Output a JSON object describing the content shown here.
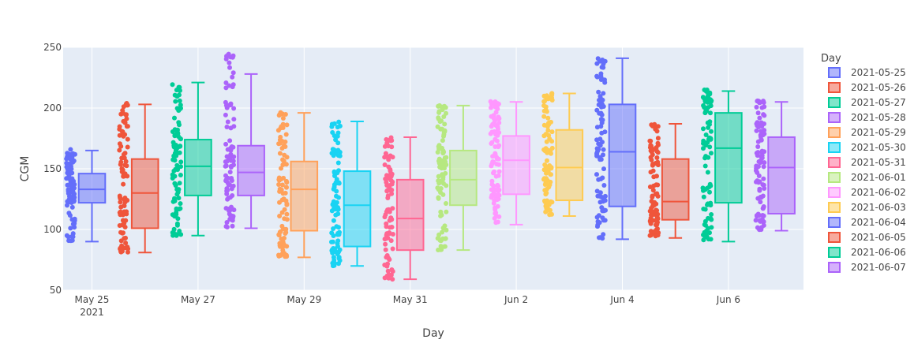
{
  "chart_data": {
    "type": "box",
    "title": "",
    "xlabel": "Day",
    "ylabel": "CGM",
    "ylim": [
      50,
      250
    ],
    "y_ticks": [
      50,
      100,
      150,
      200,
      250
    ],
    "x_ticks": [
      {
        "date": "2021-05-25",
        "label": "May 25",
        "sublabel": "2021"
      },
      {
        "date": "2021-05-27",
        "label": "May 27",
        "sublabel": ""
      },
      {
        "date": "2021-05-29",
        "label": "May 29",
        "sublabel": ""
      },
      {
        "date": "2021-05-31",
        "label": "May 31",
        "sublabel": ""
      },
      {
        "date": "2021-06-02",
        "label": "Jun 2",
        "sublabel": ""
      },
      {
        "date": "2021-06-04",
        "label": "Jun 4",
        "sublabel": ""
      },
      {
        "date": "2021-06-06",
        "label": "Jun 6",
        "sublabel": ""
      }
    ],
    "grid": true,
    "legend": {
      "title": "Day",
      "position": "right"
    },
    "series": [
      {
        "name": "2021-05-25",
        "color": "#636efa",
        "min": 90,
        "q1": 122,
        "median": 133,
        "q3": 146,
        "max": 165,
        "points_min": 90,
        "points_max": 166
      },
      {
        "name": "2021-05-26",
        "color": "#ef553b",
        "min": 81,
        "q1": 101,
        "median": 130,
        "q3": 158,
        "max": 203,
        "points_min": 81,
        "points_max": 204
      },
      {
        "name": "2021-05-27",
        "color": "#00cc96",
        "min": 95,
        "q1": 128,
        "median": 152,
        "q3": 174,
        "max": 221,
        "points_min": 95,
        "points_max": 222
      },
      {
        "name": "2021-05-28",
        "color": "#ab63fa",
        "min": 101,
        "q1": 128,
        "median": 147,
        "q3": 169,
        "max": 228,
        "points_min": 101,
        "points_max": 245
      },
      {
        "name": "2021-05-29",
        "color": "#ffa15a",
        "min": 77,
        "q1": 99,
        "median": 133,
        "q3": 156,
        "max": 196,
        "points_min": 77,
        "points_max": 197
      },
      {
        "name": "2021-05-30",
        "color": "#19d3f3",
        "min": 70,
        "q1": 86,
        "median": 120,
        "q3": 148,
        "max": 189,
        "points_min": 70,
        "points_max": 189
      },
      {
        "name": "2021-05-31",
        "color": "#ff6692",
        "min": 59,
        "q1": 83,
        "median": 109,
        "q3": 141,
        "max": 176,
        "points_min": 59,
        "points_max": 176
      },
      {
        "name": "2021-06-01",
        "color": "#b6e880",
        "min": 83,
        "q1": 120,
        "median": 141,
        "q3": 165,
        "max": 202,
        "points_min": 83,
        "points_max": 202
      },
      {
        "name": "2021-06-02",
        "color": "#ff97ff",
        "min": 104,
        "q1": 129,
        "median": 157,
        "q3": 177,
        "max": 205,
        "points_min": 104,
        "points_max": 206
      },
      {
        "name": "2021-06-03",
        "color": "#fecb52",
        "min": 111,
        "q1": 124,
        "median": 151,
        "q3": 182,
        "max": 212,
        "points_min": 111,
        "points_max": 213
      },
      {
        "name": "2021-06-04",
        "color": "#636efa",
        "min": 92,
        "q1": 119,
        "median": 164,
        "q3": 203,
        "max": 241,
        "points_min": 92,
        "points_max": 242
      },
      {
        "name": "2021-06-05",
        "color": "#ef553b",
        "min": 93,
        "q1": 108,
        "median": 123,
        "q3": 158,
        "max": 187,
        "points_min": 93,
        "points_max": 187
      },
      {
        "name": "2021-06-06",
        "color": "#00cc96",
        "min": 90,
        "q1": 122,
        "median": 167,
        "q3": 196,
        "max": 214,
        "points_min": 90,
        "points_max": 215
      },
      {
        "name": "2021-06-07",
        "color": "#ab63fa",
        "min": 99,
        "q1": 113,
        "median": 151,
        "q3": 176,
        "max": 205,
        "points_min": 99,
        "points_max": 206
      }
    ]
  }
}
